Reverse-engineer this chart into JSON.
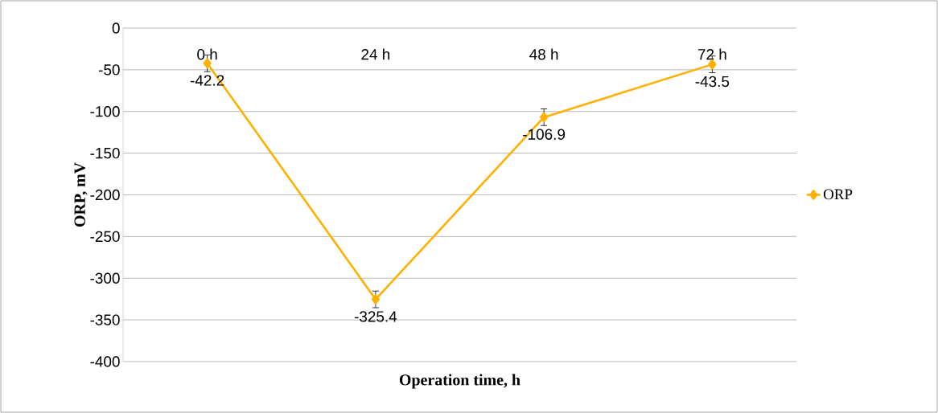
{
  "chart_data": {
    "type": "line",
    "xlabel": "Operation time, h",
    "ylabel": "ORP, mV",
    "categories": [
      "0 h",
      "24 h",
      "48 h",
      "72 h"
    ],
    "series": [
      {
        "name": "ORP",
        "color": "#ffb000",
        "values": [
          -42.2,
          -325.4,
          -106.9,
          -43.5
        ],
        "errors": [
          10,
          10,
          10,
          10
        ]
      }
    ],
    "ylim": [
      -400,
      0
    ],
    "yticks": [
      -400,
      -350,
      -300,
      -250,
      -200,
      -150,
      -100,
      -50,
      0
    ],
    "grid": "y",
    "legend": "right",
    "marker": "diamond",
    "line_style": "solid",
    "data_labels": true
  }
}
